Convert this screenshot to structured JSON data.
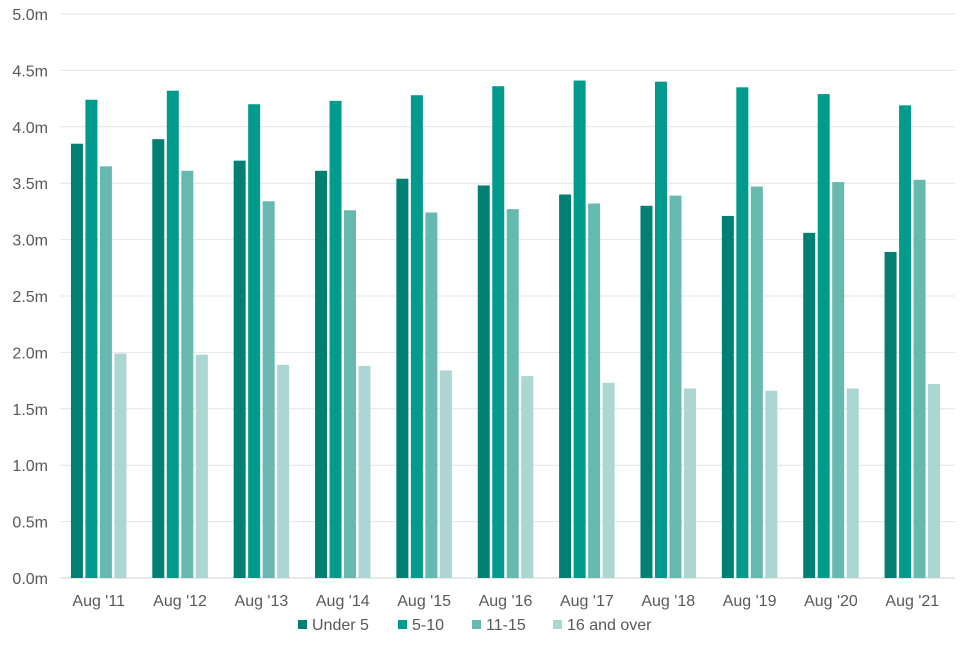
{
  "chart_data": {
    "type": "bar",
    "title": "",
    "xlabel": "",
    "ylabel": "",
    "ylim": [
      0,
      5.0
    ],
    "yticks": [
      "0.0m",
      "0.5m",
      "1.0m",
      "1.5m",
      "2.0m",
      "2.5m",
      "3.0m",
      "3.5m",
      "4.0m",
      "4.5m",
      "5.0m"
    ],
    "grid": true,
    "legend_position": "bottom",
    "categories": [
      "Aug '11",
      "Aug '12",
      "Aug '13",
      "Aug '14",
      "Aug '15",
      "Aug '16",
      "Aug '17",
      "Aug '18",
      "Aug '19",
      "Aug '20",
      "Aug '21"
    ],
    "series": [
      {
        "name": "Under 5",
        "color": "#007f73",
        "values": [
          3.85,
          3.89,
          3.7,
          3.61,
          3.54,
          3.48,
          3.4,
          3.3,
          3.21,
          3.06,
          2.89
        ]
      },
      {
        "name": "5-10",
        "color": "#009b8c",
        "values": [
          4.24,
          4.32,
          4.2,
          4.23,
          4.28,
          4.36,
          4.41,
          4.4,
          4.35,
          4.29,
          4.19
        ]
      },
      {
        "name": "11-15",
        "color": "#66b9af",
        "values": [
          3.65,
          3.61,
          3.34,
          3.26,
          3.24,
          3.27,
          3.32,
          3.39,
          3.47,
          3.51,
          3.53
        ]
      },
      {
        "name": "16 and over",
        "color": "#abd6d2",
        "values": [
          1.99,
          1.98,
          1.89,
          1.88,
          1.84,
          1.79,
          1.73,
          1.68,
          1.66,
          1.68,
          1.72
        ]
      }
    ]
  }
}
